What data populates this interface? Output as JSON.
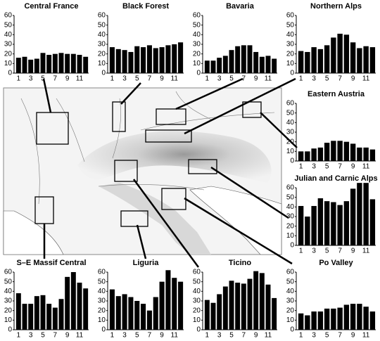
{
  "chart_data": [
    {
      "type": "bar",
      "title": "Central France",
      "categories": [
        1,
        null,
        3,
        null,
        5,
        null,
        7,
        null,
        9,
        null,
        11,
        null
      ],
      "values": [
        16,
        17,
        14,
        15,
        21,
        19,
        20,
        21,
        20,
        20,
        19,
        17
      ],
      "color": "#000000",
      "ylim": [
        0,
        60
      ],
      "yticks": [
        0,
        10,
        20,
        30,
        40,
        50,
        60
      ]
    },
    {
      "type": "bar",
      "title": "Black Forest",
      "categories": [
        1,
        null,
        3,
        null,
        5,
        null,
        7,
        null,
        9,
        null,
        11,
        null
      ],
      "values": [
        27,
        25,
        24,
        22,
        28,
        27,
        29,
        26,
        27,
        29,
        30,
        32
      ],
      "color": "#000000",
      "ylim": [
        0,
        60
      ],
      "yticks": [
        0,
        10,
        20,
        30,
        40,
        50,
        60
      ]
    },
    {
      "type": "bar",
      "title": "Bavaria",
      "categories": [
        1,
        null,
        3,
        null,
        5,
        null,
        7,
        null,
        9,
        null,
        11,
        null
      ],
      "values": [
        13,
        13,
        16,
        18,
        24,
        28,
        29,
        29,
        22,
        17,
        18,
        15
      ],
      "color": "#000000",
      "ylim": [
        0,
        60
      ],
      "yticks": [
        0,
        10,
        20,
        30,
        40,
        50,
        60
      ]
    },
    {
      "type": "bar",
      "title": "Northern Alps",
      "categories": [
        1,
        null,
        3,
        null,
        5,
        null,
        7,
        null,
        9,
        null,
        11,
        null
      ],
      "values": [
        23,
        22,
        27,
        25,
        29,
        37,
        41,
        40,
        32,
        26,
        28,
        27
      ],
      "color": "#000000",
      "ylim": [
        0,
        60
      ],
      "yticks": [
        0,
        10,
        20,
        30,
        40,
        50,
        60
      ]
    },
    {
      "type": "bar",
      "title": "Eastern Austria",
      "categories": [
        1,
        null,
        3,
        null,
        5,
        null,
        7,
        null,
        9,
        null,
        11,
        null
      ],
      "values": [
        10,
        10,
        13,
        14,
        19,
        21,
        21,
        20,
        18,
        14,
        14,
        12
      ],
      "color": "#000000",
      "ylim": [
        0,
        60
      ],
      "yticks": [
        0,
        10,
        20,
        30,
        40,
        50,
        60
      ]
    },
    {
      "type": "bar",
      "title": "Julian and Carnic Alps",
      "categories": [
        1,
        null,
        3,
        null,
        5,
        null,
        7,
        null,
        9,
        null,
        11,
        null
      ],
      "values": [
        41,
        30,
        41,
        49,
        46,
        45,
        42,
        46,
        59,
        65,
        65,
        48
      ],
      "color": "#000000",
      "ylim": [
        0,
        60
      ],
      "yticks": [
        0,
        10,
        20,
        30,
        40,
        50,
        60
      ]
    },
    {
      "type": "bar",
      "title": "S–E Massif Central",
      "categories": [
        1,
        null,
        3,
        null,
        5,
        null,
        7,
        null,
        9,
        null,
        11,
        null
      ],
      "values": [
        38,
        27,
        27,
        35,
        36,
        27,
        23,
        32,
        55,
        60,
        49,
        43
      ],
      "color": "#000000",
      "ylim": [
        0,
        60
      ],
      "yticks": [
        0,
        10,
        20,
        30,
        40,
        50,
        60
      ]
    },
    {
      "type": "bar",
      "title": "Liguria",
      "categories": [
        1,
        null,
        3,
        null,
        5,
        null,
        7,
        null,
        9,
        null,
        11,
        null
      ],
      "values": [
        42,
        35,
        37,
        34,
        30,
        27,
        20,
        34,
        50,
        62,
        54,
        50
      ],
      "color": "#000000",
      "ylim": [
        0,
        60
      ],
      "yticks": [
        0,
        10,
        20,
        30,
        40,
        50,
        60
      ]
    },
    {
      "type": "bar",
      "title": "Ticino",
      "categories": [
        1,
        null,
        3,
        null,
        5,
        null,
        7,
        null,
        9,
        null,
        11,
        null
      ],
      "values": [
        31,
        28,
        37,
        45,
        51,
        49,
        48,
        53,
        61,
        59,
        47,
        33
      ],
      "color": "#000000",
      "ylim": [
        0,
        60
      ],
      "yticks": [
        0,
        10,
        20,
        30,
        40,
        50,
        60
      ]
    },
    {
      "type": "bar",
      "title": "Po Valley",
      "categories": [
        1,
        null,
        3,
        null,
        5,
        null,
        7,
        null,
        9,
        null,
        11,
        null
      ],
      "values": [
        17,
        15,
        19,
        19,
        22,
        22,
        23,
        26,
        27,
        27,
        24,
        19
      ],
      "color": "#000000",
      "ylim": [
        0,
        60
      ],
      "yticks": [
        0,
        10,
        20,
        30,
        40,
        50,
        60
      ]
    }
  ]
}
